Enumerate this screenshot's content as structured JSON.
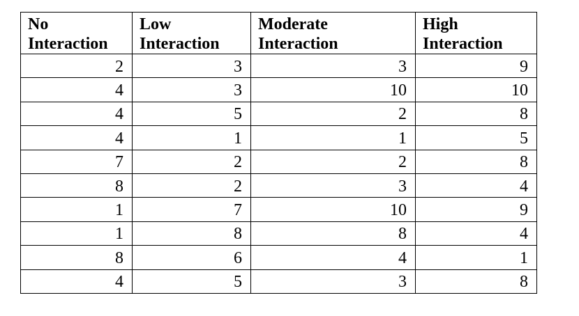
{
  "table": {
    "headers": [
      [
        "No",
        "Interaction"
      ],
      [
        "Low",
        "Interaction"
      ],
      [
        "Moderate",
        "Interaction"
      ],
      [
        "High",
        "Interaction"
      ]
    ],
    "rows": [
      [
        "2",
        "3",
        "3",
        "9"
      ],
      [
        "4",
        "3",
        "10",
        "10"
      ],
      [
        "4",
        "5",
        "2",
        "8"
      ],
      [
        "4",
        "1",
        "1",
        "5"
      ],
      [
        "7",
        "2",
        "2",
        "8"
      ],
      [
        "8",
        "2",
        "3",
        "4"
      ],
      [
        "1",
        "7",
        "10",
        "9"
      ],
      [
        "1",
        "8",
        "8",
        "4"
      ],
      [
        "8",
        "6",
        "4",
        "1"
      ],
      [
        "4",
        "5",
        "3",
        "8"
      ]
    ]
  }
}
